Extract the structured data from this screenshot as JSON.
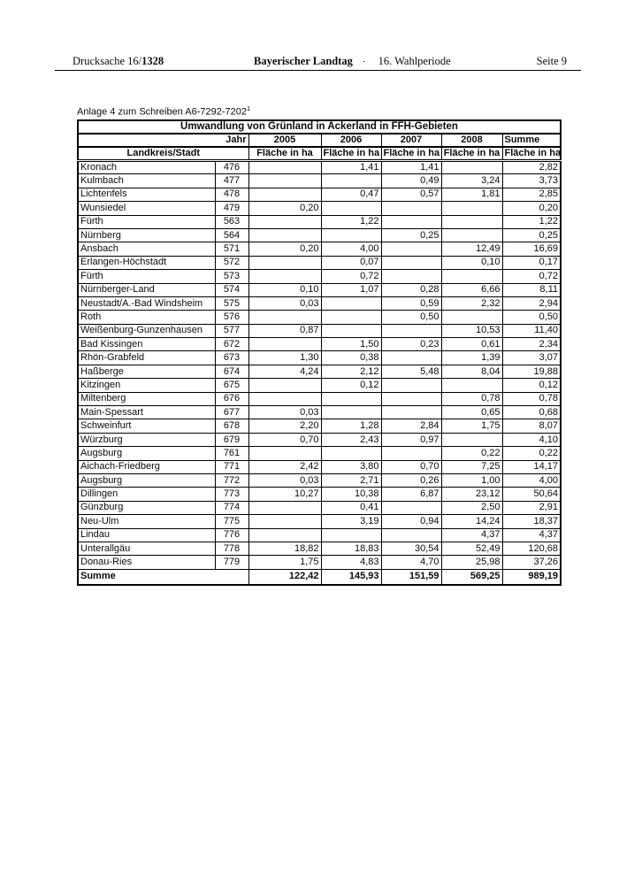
{
  "page_header": {
    "left_normal": "Drucksache 16/",
    "left_bold": "1328",
    "center_bold": "Bayerischer Landtag",
    "center_separator": "·",
    "center_normal": "16. Wahlperiode",
    "right": "Seite 9"
  },
  "annotation": {
    "text": "Anlage 4 zum Schreiben A6-7292-7202",
    "superscript": "1"
  },
  "table": {
    "title": "Umwandlung von Grünland in Ackerland in FFH-Gebieten",
    "jahr_label": "Jahr",
    "year_headers": [
      "2005",
      "2006",
      "2007",
      "2008"
    ],
    "summe_header": "Summe",
    "landkreis_header": "Landkreis/Stadt",
    "flaeche_label": "Fläche in ha",
    "rows": [
      {
        "name": "Kronach",
        "nr": "476",
        "values": [
          "",
          "1,41",
          "1,41",
          "",
          "2,82"
        ]
      },
      {
        "name": "Kulmbach",
        "nr": "477",
        "values": [
          "",
          "",
          "0,49",
          "3,24",
          "3,73"
        ]
      },
      {
        "name": "Lichtenfels",
        "nr": "478",
        "values": [
          "",
          "0,47",
          "0,57",
          "1,81",
          "2,85"
        ]
      },
      {
        "name": "Wunsiedel",
        "nr": "479",
        "values": [
          "0,20",
          "",
          "",
          "",
          "0,20"
        ]
      },
      {
        "name": "Fürth",
        "nr": "563",
        "values": [
          "",
          "1,22",
          "",
          "",
          "1,22"
        ]
      },
      {
        "name": "Nürnberg",
        "nr": "564",
        "values": [
          "",
          "",
          "0,25",
          "",
          "0,25"
        ]
      },
      {
        "name": "Ansbach",
        "nr": "571",
        "values": [
          "0,20",
          "4,00",
          "",
          "12,49",
          "16,69"
        ]
      },
      {
        "name": "Erlangen-Höchstadt",
        "nr": "572",
        "values": [
          "",
          "0,07",
          "",
          "0,10",
          "0,17"
        ]
      },
      {
        "name": "Fürth",
        "nr": "573",
        "values": [
          "",
          "0,72",
          "",
          "",
          "0,72"
        ]
      },
      {
        "name": "Nürnberger-Land",
        "nr": "574",
        "values": [
          "0,10",
          "1,07",
          "0,28",
          "6,66",
          "8,11"
        ]
      },
      {
        "name": "Neustadt/A.-Bad Windsheim",
        "nr": "575",
        "values": [
          "0,03",
          "",
          "0,59",
          "2,32",
          "2,94"
        ]
      },
      {
        "name": "Roth",
        "nr": "576",
        "values": [
          "",
          "",
          "0,50",
          "",
          "0,50"
        ]
      },
      {
        "name": "Weißenburg-Gunzenhausen",
        "nr": "577",
        "values": [
          "0,87",
          "",
          "",
          "10,53",
          "11,40"
        ]
      },
      {
        "name": "Bad Kissingen",
        "nr": "672",
        "values": [
          "",
          "1,50",
          "0,23",
          "0,61",
          "2,34"
        ]
      },
      {
        "name": "Rhön-Grabfeld",
        "nr": "673",
        "values": [
          "1,30",
          "0,38",
          "",
          "1,39",
          "3,07"
        ]
      },
      {
        "name": "Haßberge",
        "nr": "674",
        "values": [
          "4,24",
          "2,12",
          "5,48",
          "8,04",
          "19,88"
        ]
      },
      {
        "name": "Kitzingen",
        "nr": "675",
        "values": [
          "",
          "0,12",
          "",
          "",
          "0,12"
        ]
      },
      {
        "name": "Miltenberg",
        "nr": "676",
        "values": [
          "",
          "",
          "",
          "0,78",
          "0,78"
        ]
      },
      {
        "name": "Main-Spessart",
        "nr": "677",
        "values": [
          "0,03",
          "",
          "",
          "0,65",
          "0,68"
        ]
      },
      {
        "name": "Schweinfurt",
        "nr": "678",
        "values": [
          "2,20",
          "1,28",
          "2,84",
          "1,75",
          "8,07"
        ]
      },
      {
        "name": "Würzburg",
        "nr": "679",
        "values": [
          "0,70",
          "2,43",
          "0,97",
          "",
          "4,10"
        ]
      },
      {
        "name": "Augsburg",
        "nr": "761",
        "values": [
          "",
          "",
          "",
          "0,22",
          "0,22"
        ]
      },
      {
        "name": "Aichach-Friedberg",
        "nr": "771",
        "values": [
          "2,42",
          "3,80",
          "0,70",
          "7,25",
          "14,17"
        ]
      },
      {
        "name": "Augsburg",
        "nr": "772",
        "values": [
          "0,03",
          "2,71",
          "0,26",
          "1,00",
          "4,00"
        ]
      },
      {
        "name": "Dillingen",
        "nr": "773",
        "values": [
          "10,27",
          "10,38",
          "6,87",
          "23,12",
          "50,64"
        ]
      },
      {
        "name": "Günzburg",
        "nr": "774",
        "values": [
          "",
          "0,41",
          "",
          "2,50",
          "2,91"
        ]
      },
      {
        "name": "Neu-Ulm",
        "nr": "775",
        "values": [
          "",
          "3,19",
          "0,94",
          "14,24",
          "18,37"
        ]
      },
      {
        "name": "Lindau",
        "nr": "776",
        "values": [
          "",
          "",
          "",
          "4,37",
          "4,37"
        ]
      },
      {
        "name": "Unterallgäu",
        "nr": "778",
        "values": [
          "18,82",
          "18,83",
          "30,54",
          "52,49",
          "120,68"
        ]
      },
      {
        "name": "Donau-Ries",
        "nr": "779",
        "values": [
          "1,75",
          "4,83",
          "4,70",
          "25,98",
          "37,26"
        ]
      }
    ],
    "sum_row": {
      "label": "Summe",
      "values": [
        "122,42",
        "145,93",
        "151,59",
        "569,25",
        "989,19"
      ]
    }
  }
}
